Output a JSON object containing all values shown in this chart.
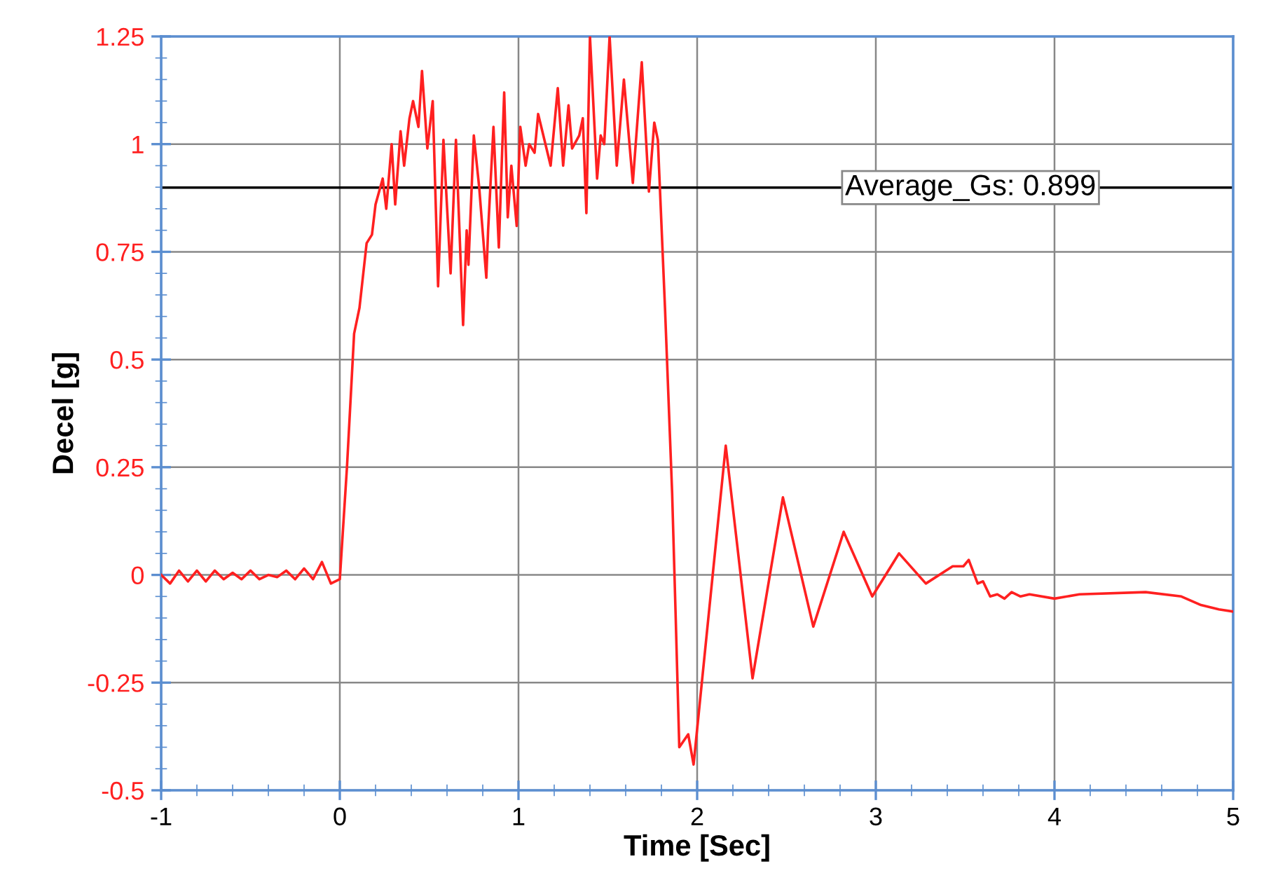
{
  "chart_data": {
    "type": "line",
    "xlabel": "Time [Sec]",
    "ylabel": "Decel [g]",
    "xlim": [
      -1,
      5
    ],
    "ylim": [
      -0.5,
      1.25
    ],
    "xticks": [
      -1,
      0,
      1,
      2,
      3,
      4,
      5
    ],
    "yticks": [
      {
        "value": -0.5,
        "label": "-0.5"
      },
      {
        "value": -0.25,
        "label": "-0.25"
      },
      0,
      0.25,
      0.5,
      0.75,
      1,
      1.25
    ],
    "grid": true,
    "legend": false,
    "marker": "none",
    "line_style": "solid",
    "ref_lines": [
      {
        "axis": "y",
        "value": 0.899,
        "label": "Average_Gs: 0.899",
        "color": "#000000"
      }
    ],
    "series": [
      {
        "color": "#ff2020",
        "x": [
          -1,
          -0.95,
          -0.9,
          -0.85,
          -0.8,
          -0.75,
          -0.7,
          -0.65,
          -0.6,
          -0.55,
          -0.5,
          -0.45,
          -0.4,
          -0.35,
          -0.3,
          -0.25,
          -0.2,
          -0.15,
          -0.1,
          -0.05,
          0,
          0.04,
          0.08,
          0.11,
          0.15,
          0.18,
          0.2,
          0.24,
          0.26,
          0.29,
          0.31,
          0.34,
          0.36,
          0.39,
          0.41,
          0.44,
          0.46,
          0.49,
          0.52,
          0.55,
          0.58,
          0.62,
          0.65,
          0.69,
          0.71,
          0.72,
          0.75,
          0.78,
          0.82,
          0.83,
          0.86,
          0.89,
          0.92,
          0.94,
          0.96,
          0.99,
          1.01,
          1.04,
          1.06,
          1.09,
          1.11,
          1.18,
          1.22,
          1.25,
          1.28,
          1.3,
          1.34,
          1.36,
          1.38,
          1.4,
          1.44,
          1.46,
          1.48,
          1.51,
          1.55,
          1.59,
          1.64,
          1.69,
          1.73,
          1.76,
          1.78,
          1.82,
          1.86,
          1.88,
          1.9,
          1.95,
          1.98,
          2.16,
          2.31,
          2.48,
          2.65,
          2.82,
          2.98,
          3.13,
          3.28,
          3.43,
          3.49,
          3.52,
          3.57,
          3.6,
          3.64,
          3.68,
          3.72,
          3.76,
          3.81,
          3.86,
          4.0,
          4.14,
          4.51,
          4.71,
          4.82,
          4.92,
          5.0
        ],
        "values": [
          0,
          -0.02,
          0.01,
          -0.015,
          0.01,
          -0.015,
          0.01,
          -0.01,
          0.005,
          -0.01,
          0.01,
          -0.01,
          0,
          -0.005,
          0.01,
          -0.01,
          0.015,
          -0.01,
          0.03,
          -0.02,
          -0.01,
          0.25,
          0.56,
          0.62,
          0.77,
          0.79,
          0.86,
          0.92,
          0.85,
          1.0,
          0.86,
          1.03,
          0.95,
          1.06,
          1.1,
          1.04,
          1.17,
          0.99,
          1.1,
          0.67,
          1.01,
          0.7,
          1.01,
          0.58,
          0.8,
          0.72,
          1.02,
          0.9,
          0.69,
          0.8,
          1.04,
          0.76,
          1.12,
          0.83,
          0.95,
          0.81,
          1.04,
          0.95,
          1.0,
          0.98,
          1.07,
          0.95,
          1.13,
          0.95,
          1.09,
          0.99,
          1.02,
          1.06,
          0.84,
          1.25,
          0.92,
          1.02,
          1.0,
          1.25,
          0.95,
          1.15,
          0.91,
          1.19,
          0.89,
          1.05,
          1.01,
          0.62,
          0.19,
          -0.1,
          -0.4,
          -0.37,
          -0.44,
          0.3,
          -0.24,
          0.18,
          -0.12,
          0.1,
          -0.05,
          0.05,
          -0.02,
          0.02,
          0.02,
          0.035,
          -0.02,
          -0.015,
          -0.05,
          -0.045,
          -0.055,
          -0.04,
          -0.05,
          -0.045,
          -0.055,
          -0.045,
          -0.04,
          -0.05,
          -0.07,
          -0.08,
          -0.085
        ]
      }
    ]
  }
}
